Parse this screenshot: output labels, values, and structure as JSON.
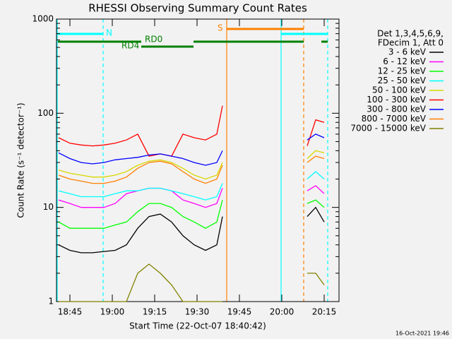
{
  "chart_data": {
    "type": "line",
    "title": "RHESSI Observing Summary Count Rates",
    "xlabel": "Start Time (22-Oct-07 18:40:42)",
    "ylabel": "Count Rate (s⁻¹ detector⁻¹)",
    "log_y": true,
    "xlim": [
      1120.25,
      1220.25
    ],
    "ylim": [
      1,
      1000
    ],
    "xticks": [
      {
        "value": 1125,
        "label": "18:45"
      },
      {
        "value": 1140,
        "label": "19:00"
      },
      {
        "value": 1155,
        "label": "19:15"
      },
      {
        "value": 1170,
        "label": "19:30"
      },
      {
        "value": 1185,
        "label": "19:45"
      },
      {
        "value": 1200,
        "label": "20:00"
      },
      {
        "value": 1215,
        "label": "20:15"
      }
    ],
    "yticks": [
      1,
      10,
      100,
      1000
    ],
    "legend_title": [
      "Det 1,3,4,5,6,9,",
      "FDecim 1, Att 0"
    ],
    "legend_position": "right",
    "annotations": {
      "night": "N",
      "saa": "S",
      "rd0": "RD0",
      "rd4": "RD4"
    },
    "footer": "16-Oct-2021 19:46",
    "x": [
      1121,
      1125,
      1129,
      1133,
      1137,
      1141,
      1145,
      1149,
      1153,
      1157,
      1161,
      1165,
      1169,
      1173,
      1177,
      1179,
      1193,
      1209,
      1212,
      1215
    ],
    "series": [
      {
        "name": "3 - 6 keV",
        "color": "#000000",
        "values": [
          4,
          3.5,
          3.3,
          3.3,
          3.4,
          3.5,
          4,
          6,
          8,
          8.5,
          7,
          5,
          4,
          3.5,
          4,
          8,
          null,
          8,
          10,
          7
        ]
      },
      {
        "name": "6 - 12 keV",
        "color": "#ff00ff",
        "values": [
          12,
          11,
          10,
          10,
          10,
          11,
          14,
          15,
          16,
          16,
          15,
          12,
          11,
          10,
          11,
          16,
          null,
          15,
          17,
          14
        ]
      },
      {
        "name": "12 - 25 keV",
        "color": "#00ff00",
        "values": [
          7,
          6,
          6,
          6,
          6,
          6.5,
          7,
          9,
          11,
          11,
          10,
          8,
          7,
          6,
          7,
          12,
          null,
          11,
          12,
          10
        ]
      },
      {
        "name": "25 - 50 keV",
        "color": "#00ffff",
        "values": [
          15,
          14,
          13,
          13,
          13,
          14,
          15,
          15,
          16,
          16,
          15,
          14,
          13,
          12,
          13,
          18,
          null,
          20,
          24,
          20
        ]
      },
      {
        "name": "50 - 100 keV",
        "color": "#d8d800",
        "values": [
          25,
          23,
          22,
          21,
          21,
          22,
          24,
          28,
          31,
          32,
          30,
          26,
          22,
          20,
          22,
          30,
          null,
          33,
          40,
          38
        ]
      },
      {
        "name": "100 - 300 keV",
        "color": "#ff0000",
        "values": [
          55,
          48,
          46,
          45,
          46,
          48,
          52,
          60,
          35,
          37,
          35,
          60,
          55,
          52,
          60,
          120,
          null,
          45,
          85,
          80
        ]
      },
      {
        "name": "300 - 800 keV",
        "color": "#0000ff",
        "values": [
          38,
          33,
          30,
          29,
          30,
          32,
          33,
          34,
          36,
          37,
          35,
          33,
          30,
          28,
          30,
          40,
          null,
          52,
          60,
          55
        ]
      },
      {
        "name": "800 - 7000 keV",
        "color": "#ff8000",
        "values": [
          22,
          20,
          19,
          18,
          18,
          19,
          21,
          26,
          30,
          31,
          29,
          24,
          20,
          18,
          20,
          28,
          null,
          30,
          35,
          33
        ]
      },
      {
        "name": "7000 - 15000 keV",
        "color": "#808000",
        "values": [
          1,
          1,
          1,
          1,
          1,
          1,
          1,
          2,
          2.5,
          2,
          1.5,
          1,
          1,
          1,
          1,
          1,
          null,
          2,
          2,
          1.5
        ]
      }
    ]
  }
}
